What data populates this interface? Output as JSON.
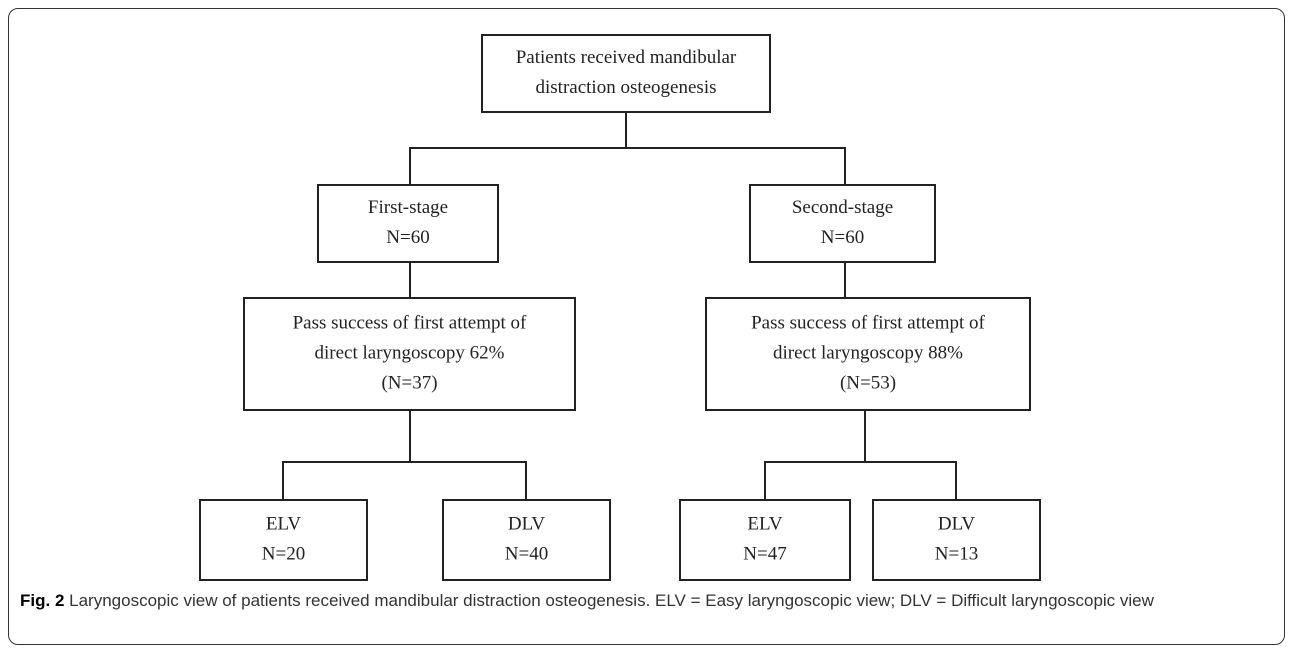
{
  "nodes": [
    {
      "lines": [
        "Patients received mandibular",
        "distraction osteogenesis"
      ]
    },
    {
      "lines": [
        "First-stage",
        "N=60"
      ]
    },
    {
      "lines": [
        "Second-stage",
        "N=60"
      ]
    },
    {
      "lines": [
        "Pass success of first attempt of",
        "direct laryngoscopy 62%",
        "(N=37)"
      ]
    },
    {
      "lines": [
        "Pass success of first attempt of",
        "direct laryngoscopy 88%",
        "(N=53)"
      ]
    },
    {
      "lines": [
        "ELV",
        "N=20"
      ]
    },
    {
      "lines": [
        "DLV",
        "N=40"
      ]
    },
    {
      "lines": [
        "ELV",
        "N=47"
      ]
    },
    {
      "lines": [
        "DLV",
        "N=13"
      ]
    }
  ],
  "caption": {
    "label": "Fig. 2",
    "text": "Laryngoscopic view of patients received mandibular distraction osteogenesis. ELV = Easy laryngoscopic view; DLV = Difficult laryngoscopic view"
  }
}
